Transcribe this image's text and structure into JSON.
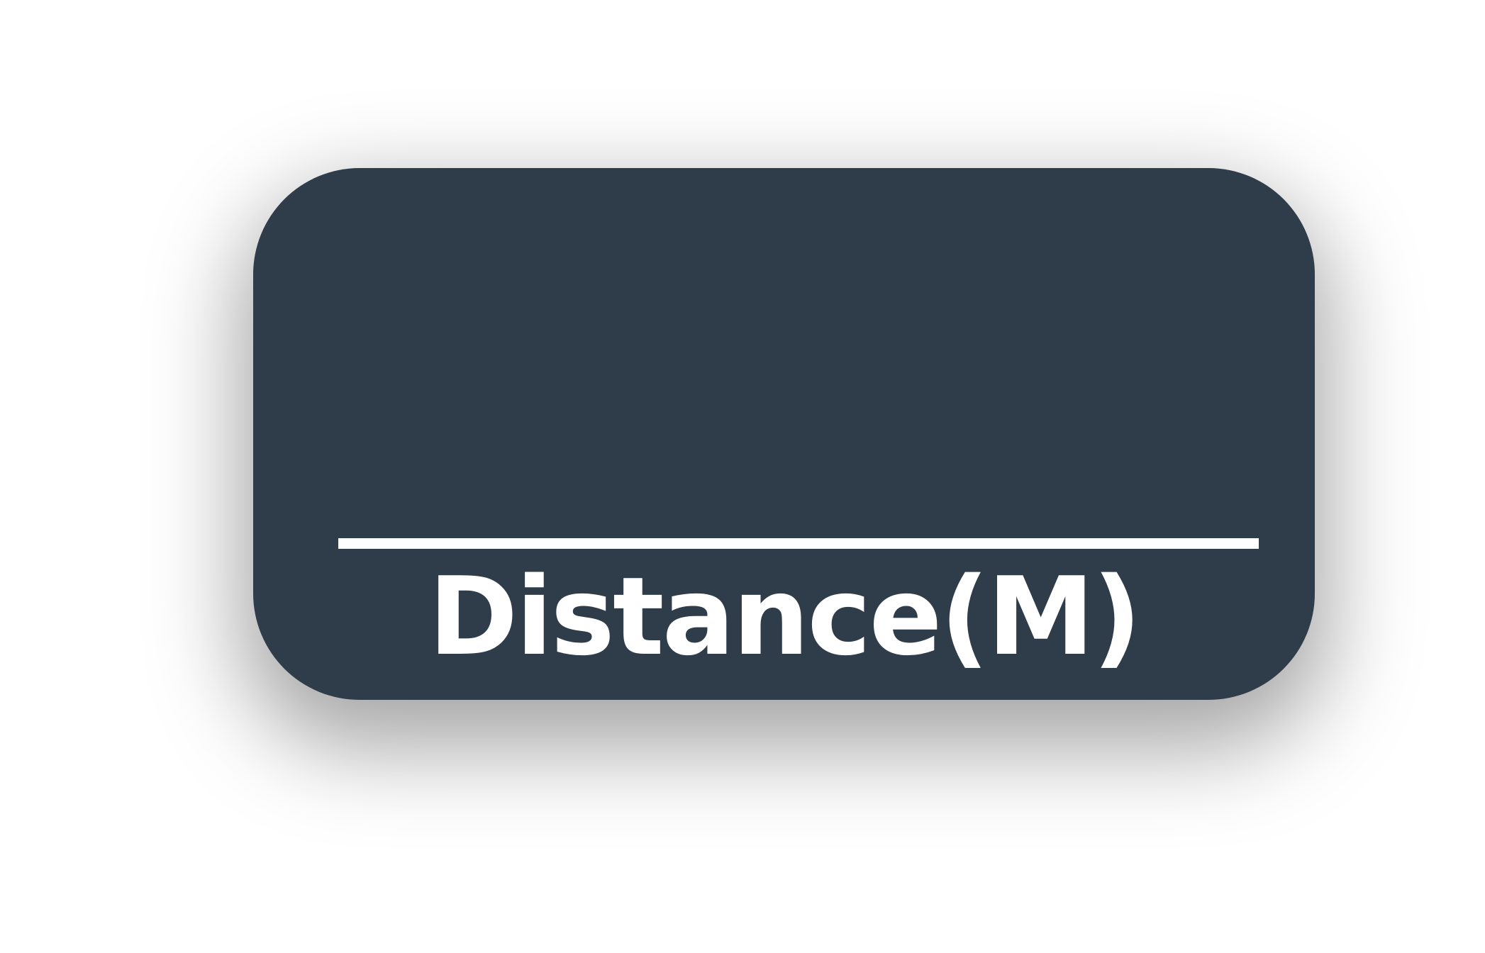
{
  "widget": {
    "value": "",
    "label": "Distance(M)"
  },
  "colors": {
    "card_background": "#2f3c4a",
    "divider": "#ffffff",
    "text": "#ffffff",
    "page_background": "#ffffff"
  }
}
